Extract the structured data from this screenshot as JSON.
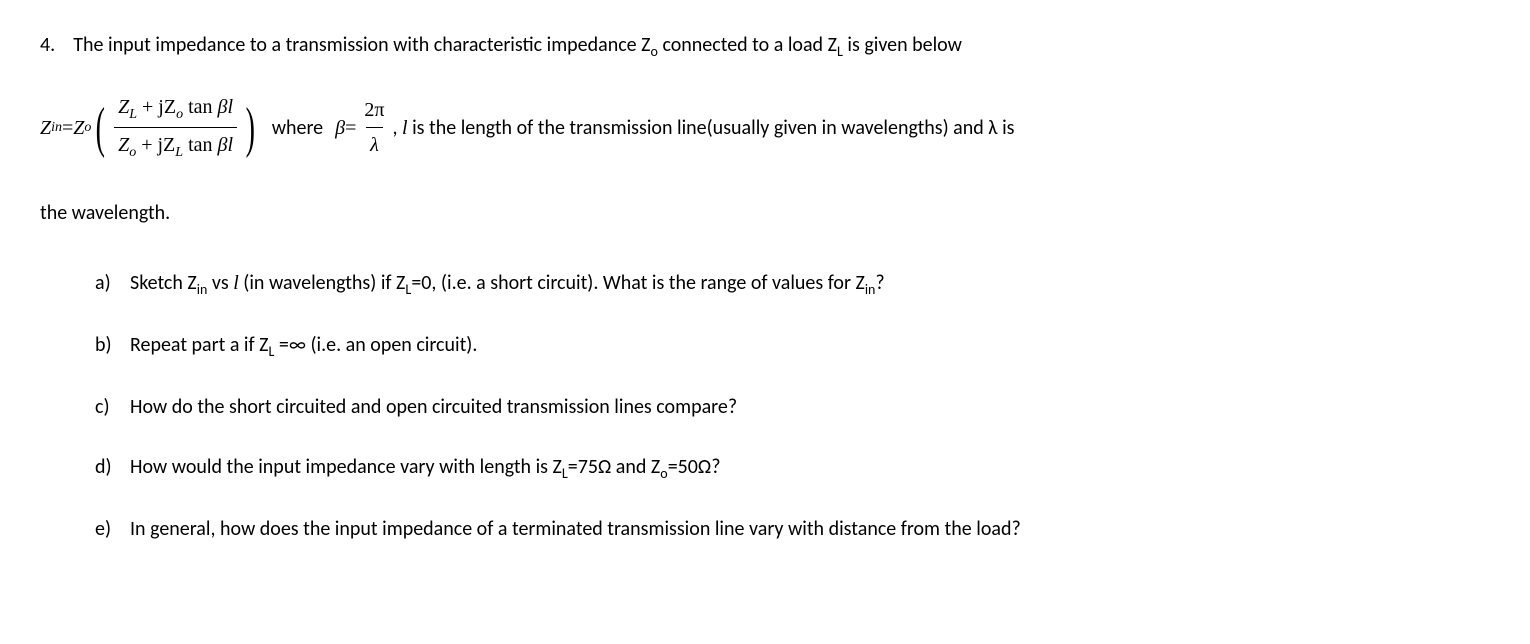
{
  "problem": {
    "number": "4.",
    "intro": "The input impedance to a transmission with characteristic impedance Z",
    "intro_sub1": "o",
    "intro_mid": " connected to a load Z",
    "intro_sub2": "L",
    "intro_end": " is given below",
    "equation": {
      "lhs_var": "Z",
      "lhs_sub": "in",
      "equals": " = ",
      "zo_var": "Z",
      "zo_sub": "o",
      "num_zl": "Z",
      "num_zl_sub": "L",
      "num_plus": " + jZ",
      "num_zo_sub": "o",
      "num_tan": " tan βl",
      "den_zo": "Z",
      "den_zo_sub": "o",
      "den_plus": " + jZ",
      "den_zl_sub": "L",
      "den_tan": " tan βl",
      "where": "where  ",
      "beta_var": "β",
      "beta_eq": " = ",
      "beta_num": "2π",
      "beta_den": "λ",
      "comma": " ,  ",
      "l_var": "l",
      "l_desc": " is the length of the transmission line(usually given in wavelengths) and λ is"
    },
    "continuation": "the wavelength.",
    "parts": {
      "a": {
        "label": "a)",
        "t1": "Sketch Z",
        "s1": "in",
        "t2": " vs ",
        "ital1": "l",
        "t3": " (in wavelengths) if Z",
        "s2": "L",
        "t4": "=0, (i.e. a short circuit).  What is the range of values for Z",
        "s3": "in",
        "t5": "?"
      },
      "b": {
        "label": "b)",
        "t1": "Repeat part a if Z",
        "s1": "L",
        "t2": " =∞ (i.e. an open circuit)."
      },
      "c": {
        "label": "c)",
        "t1": "How do the short circuited and open circuited transmission lines compare?"
      },
      "d": {
        "label": "d)",
        "t1": "How would the input impedance vary with length is Z",
        "s1": "L",
        "t2": "=75Ω and Z",
        "s2": "o",
        "t3": "=50Ω?"
      },
      "e": {
        "label": "e)",
        "t1": "In general, how does the input impedance of a terminated transmission line vary with distance from the load?"
      }
    }
  }
}
